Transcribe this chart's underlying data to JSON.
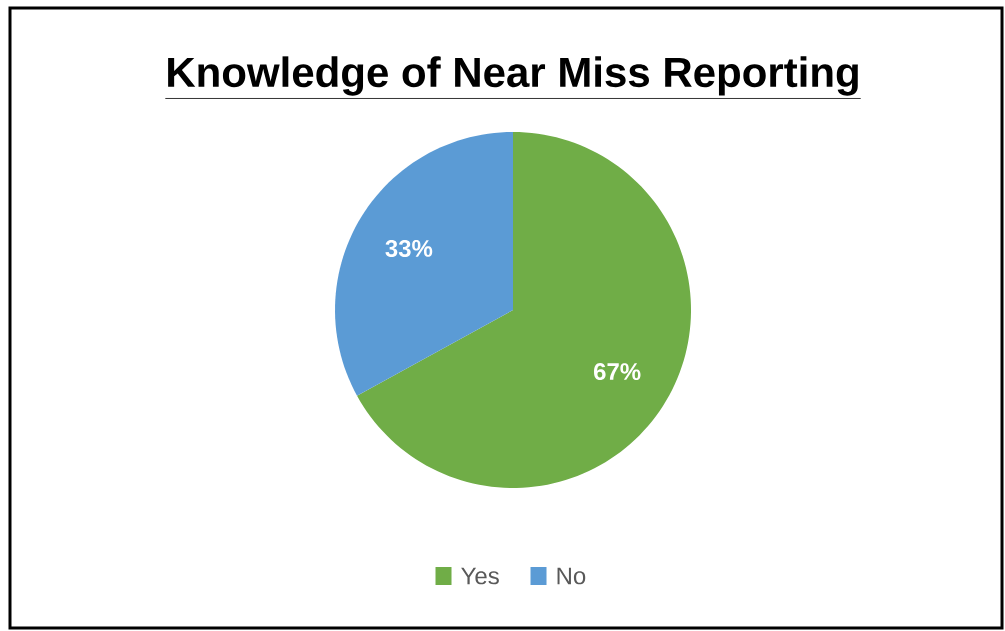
{
  "chart_data": {
    "type": "pie",
    "title": "Knowledge of Near Miss Reporting",
    "categories": [
      "Yes",
      "No"
    ],
    "values": [
      67,
      33
    ],
    "colors": [
      "#70ad47",
      "#5b9bd5"
    ],
    "value_labels": [
      "67%",
      "33%"
    ],
    "legend": "bottom"
  }
}
